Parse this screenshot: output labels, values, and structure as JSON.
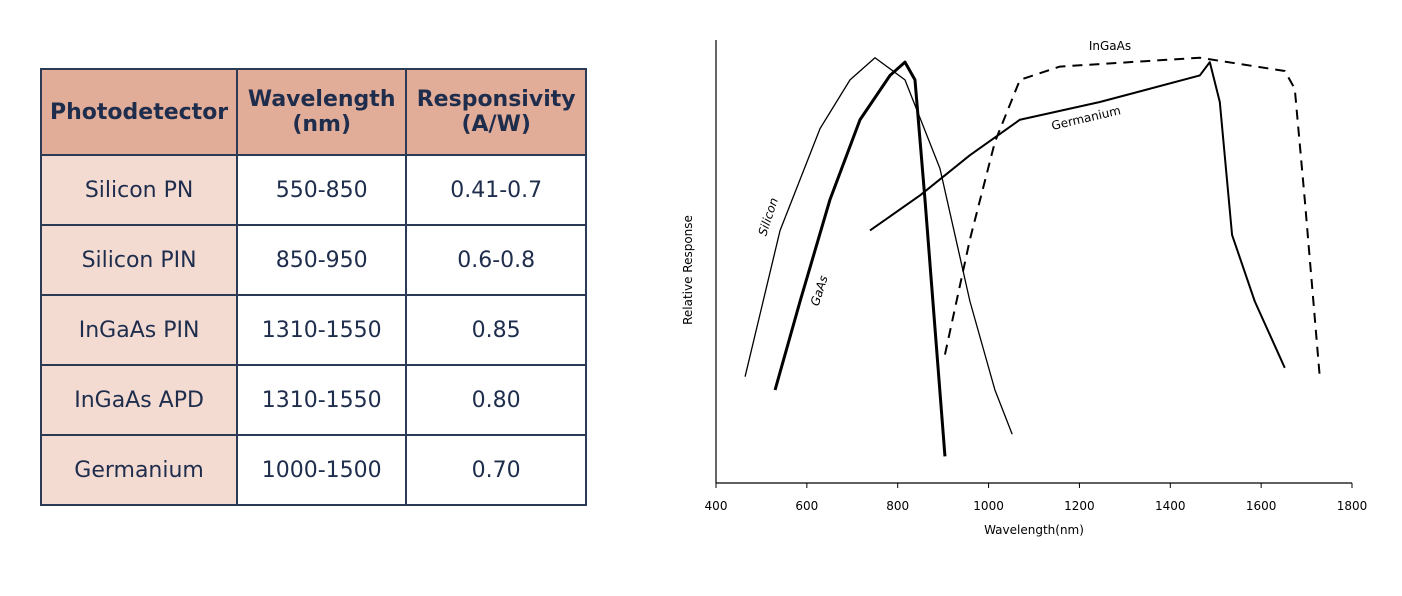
{
  "table": {
    "header": [
      "Photodetector",
      "Wavelength (nm)",
      "Responsivity (A/W)"
    ],
    "rows": [
      [
        "Silicon PN",
        "550-850",
        "0.41-0.7"
      ],
      [
        "Silicon PIN",
        "850-950",
        "0.6-0.8"
      ],
      [
        "InGaAs PIN",
        "1310-1550",
        "0.85"
      ],
      [
        "InGaAs APD",
        "1310-1550",
        "0.80"
      ],
      [
        "Germanium",
        "1000-1500",
        "0.70"
      ]
    ]
  },
  "chart_data": {
    "type": "line",
    "xlabel": "Wavelength(nm)",
    "ylabel": "Relative Response",
    "xlim": [
      400,
      1800
    ],
    "xticks": [
      400,
      600,
      800,
      1000,
      1200,
      1400,
      1600,
      1800
    ],
    "ylim": [
      0,
      1
    ],
    "series": [
      {
        "name": "Silicon",
        "color": "#000000",
        "linestyle": "solid",
        "linewidth": 1.3,
        "x": [
          464,
          541,
          629,
          695,
          750,
          816,
          893,
          959,
          1014,
          1052
        ],
        "values": [
          0.24,
          0.57,
          0.8,
          0.91,
          0.96,
          0.91,
          0.71,
          0.41,
          0.21,
          0.11
        ]
      },
      {
        "name": "GaAs",
        "color": "#000000",
        "linestyle": "solid",
        "linewidth": 3,
        "x": [
          530,
          585,
          651,
          717,
          783,
          816,
          838,
          860,
          882,
          904
        ],
        "values": [
          0.21,
          0.41,
          0.64,
          0.82,
          0.92,
          0.95,
          0.91,
          0.64,
          0.35,
          0.06
        ]
      },
      {
        "name": "Germanium",
        "color": "#000000",
        "linestyle": "solid",
        "linewidth": 2,
        "x": [
          739,
          850,
          959,
          1069,
          1245,
          1465,
          1487,
          1509,
          1536,
          1586,
          1652
        ],
        "values": [
          0.57,
          0.65,
          0.74,
          0.82,
          0.86,
          0.92,
          0.95,
          0.86,
          0.56,
          0.41,
          0.26
        ]
      },
      {
        "name": "InGaAs",
        "color": "#000000",
        "linestyle": "dashed",
        "linewidth": 2,
        "x": [
          904,
          959,
          1014,
          1069,
          1157,
          1465,
          1652,
          1674,
          1696,
          1729
        ],
        "values": [
          0.29,
          0.55,
          0.77,
          0.91,
          0.94,
          0.96,
          0.93,
          0.89,
          0.64,
          0.24
        ]
      }
    ]
  }
}
